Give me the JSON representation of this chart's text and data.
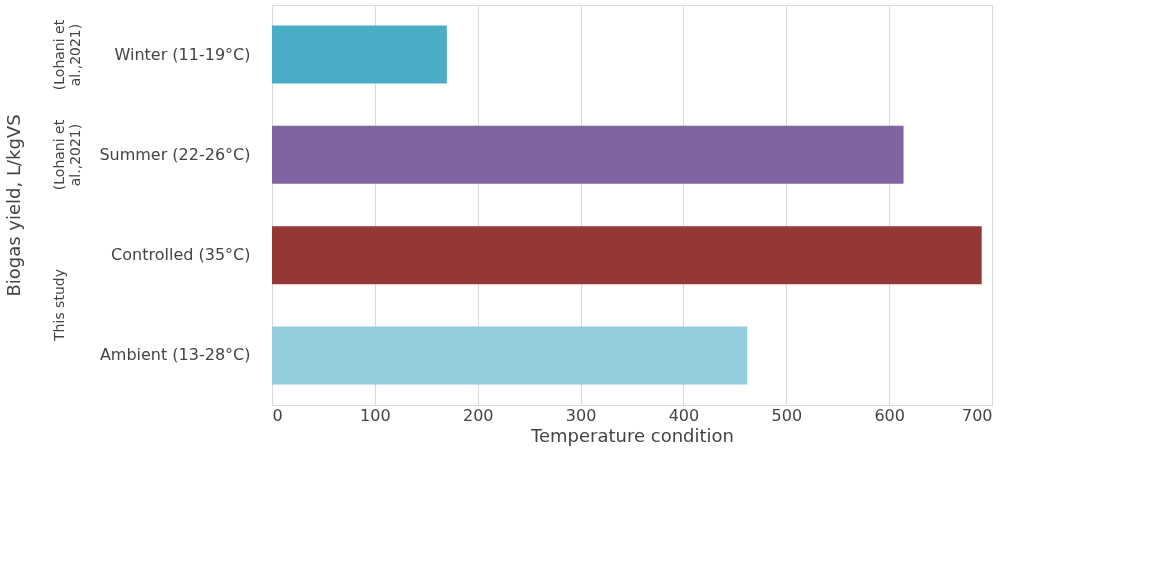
{
  "chart_data": {
    "type": "bar",
    "orientation": "horizontal",
    "xlabel": "Temperature condition",
    "ylabel": "Biogas yield, L/kgVS",
    "categories": [
      "Winter (11-19°C)",
      "Summer (22-26°C)",
      "Controlled (35°C)",
      "Ambient (13-28°C)"
    ],
    "values": [
      170,
      614,
      690,
      462
    ],
    "colors": [
      "#4bacc6",
      "#8064a2",
      "#953735",
      "#93cddd"
    ],
    "xlim": [
      0,
      700
    ],
    "xticks": [
      0,
      100,
      200,
      300,
      400,
      500,
      600,
      700
    ],
    "grid": "x",
    "annotations": [
      "(Lohani et al.,2021)",
      "(Lohani et al.,2021)",
      "This study"
    ]
  }
}
